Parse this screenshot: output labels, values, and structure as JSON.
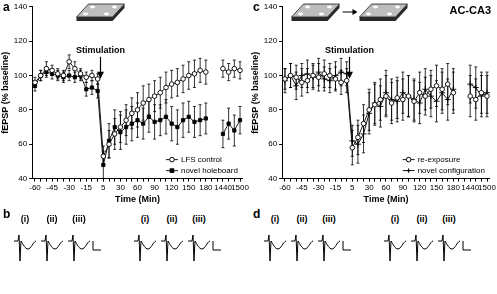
{
  "figure_label": "AC-CA3",
  "chart_data": [
    {
      "type": "line",
      "panel_label": "a",
      "annotations": [
        "Stimulation"
      ],
      "xlabel": "Time (Min)",
      "ylabel": "fEPSP (% baseline)",
      "categories": [
        "-60",
        null,
        null,
        "-45",
        null,
        null,
        "-30",
        null,
        null,
        "-15",
        null,
        null,
        "5",
        null,
        null,
        "30",
        null,
        null,
        "60",
        null,
        null,
        "90",
        null,
        null,
        "120",
        null,
        null,
        "150",
        null,
        null,
        "180",
        null,
        null,
        "1440",
        null,
        null,
        "1500"
      ],
      "ylim": [
        40,
        140
      ],
      "yticks": [
        40,
        60,
        80,
        100,
        120,
        140
      ],
      "grid": false,
      "legend": "lower right",
      "series": [
        {
          "name": "LFS control",
          "color": "#000000",
          "marker": "circle_open",
          "values": [
            96,
            100,
            104,
            103,
            101,
            100,
            108,
            104,
            101,
            99,
            100,
            98,
            53,
            60,
            66,
            70,
            74,
            78,
            80,
            84,
            86,
            88,
            90,
            93,
            95,
            96,
            98,
            100,
            101,
            103,
            102,
            null,
            null,
            104,
            102,
            104,
            103
          ],
          "errors": [
            3,
            3,
            4,
            3,
            3,
            3,
            4,
            4,
            3,
            3,
            3,
            3,
            6,
            8,
            9,
            9,
            9,
            9,
            10,
            10,
            9,
            9,
            9,
            9,
            8,
            8,
            8,
            8,
            8,
            7,
            7,
            null,
            null,
            5,
            5,
            5,
            5
          ]
        },
        {
          "name": "novel holeboard",
          "color": "#000000",
          "marker": "square",
          "values": [
            94,
            100,
            102,
            101,
            100,
            99,
            100,
            99,
            100,
            92,
            93,
            91,
            48,
            62,
            70,
            67,
            70,
            72,
            74,
            72,
            76,
            73,
            74,
            76,
            72,
            70,
            74,
            76,
            73,
            74,
            75,
            null,
            null,
            66,
            72,
            68,
            74
          ],
          "errors": [
            3,
            3,
            3,
            3,
            3,
            3,
            3,
            3,
            3,
            4,
            4,
            4,
            8,
            10,
            10,
            10,
            10,
            10,
            10,
            9,
            9,
            10,
            9,
            10,
            10,
            10,
            10,
            9,
            9,
            9,
            9,
            null,
            null,
            8,
            9,
            9,
            8
          ]
        }
      ]
    },
    {
      "type": "line",
      "panel_label": "c",
      "annotations": [
        "Stimulation"
      ],
      "xlabel": "Time (Min)",
      "ylabel": "fEPSP (% baseline)",
      "categories": [
        "-60",
        null,
        null,
        "-45",
        null,
        null,
        "-30",
        null,
        null,
        "-15",
        null,
        null,
        "5",
        null,
        null,
        "30",
        null,
        null,
        "60",
        null,
        null,
        "90",
        null,
        null,
        "120",
        null,
        null,
        "150",
        null,
        null,
        "180",
        null,
        null,
        "1440",
        null,
        null,
        "1500"
      ],
      "ylim": [
        40,
        140
      ],
      "yticks": [
        40,
        60,
        80,
        100,
        120,
        140
      ],
      "grid": false,
      "legend": "lower right",
      "series": [
        {
          "name": "re-exposure",
          "color": "#000000",
          "marker": "circle_open",
          "values": [
            98,
            100,
            99,
            96,
            97,
            100,
            99,
            101,
            100,
            98,
            96,
            97,
            58,
            64,
            72,
            80,
            83,
            86,
            88,
            84,
            87,
            86,
            88,
            85,
            90,
            88,
            92,
            94,
            92,
            95,
            90,
            null,
            null,
            88,
            86,
            90,
            88
          ],
          "errors": [
            6,
            7,
            7,
            8,
            7,
            7,
            8,
            8,
            7,
            7,
            7,
            7,
            10,
            10,
            11,
            12,
            12,
            12,
            12,
            12,
            12,
            12,
            12,
            12,
            12,
            11,
            11,
            12,
            12,
            12,
            12,
            null,
            null,
            12,
            12,
            12,
            12
          ]
        },
        {
          "name": "novel configuration",
          "color": "#000000",
          "marker": "cross",
          "values": [
            97,
            100,
            94,
            100,
            101,
            99,
            102,
            98,
            97,
            100,
            102,
            101,
            62,
            60,
            66,
            78,
            84,
            82,
            90,
            86,
            85,
            90,
            88,
            86,
            84,
            92,
            88,
            85,
            90,
            86,
            92,
            null,
            null,
            95,
            93,
            88,
            90
          ],
          "errors": [
            7,
            7,
            8,
            7,
            8,
            7,
            8,
            7,
            7,
            8,
            8,
            7,
            9,
            11,
            11,
            12,
            12,
            12,
            13,
            12,
            12,
            12,
            12,
            12,
            12,
            12,
            12,
            12,
            12,
            12,
            12,
            null,
            null,
            11,
            12,
            12,
            12
          ]
        }
      ]
    }
  ],
  "trace_panels": [
    {
      "panel_label": "b",
      "groups": [
        [
          "(i)",
          "(ii)",
          "(iii)"
        ],
        [
          "(i)",
          "(ii)",
          "(iii)"
        ]
      ]
    },
    {
      "panel_label": "d",
      "groups": [
        [
          "(i)",
          "(ii)",
          "(iii)"
        ],
        [
          "(i)",
          "(ii)",
          "(iii)"
        ]
      ]
    }
  ]
}
